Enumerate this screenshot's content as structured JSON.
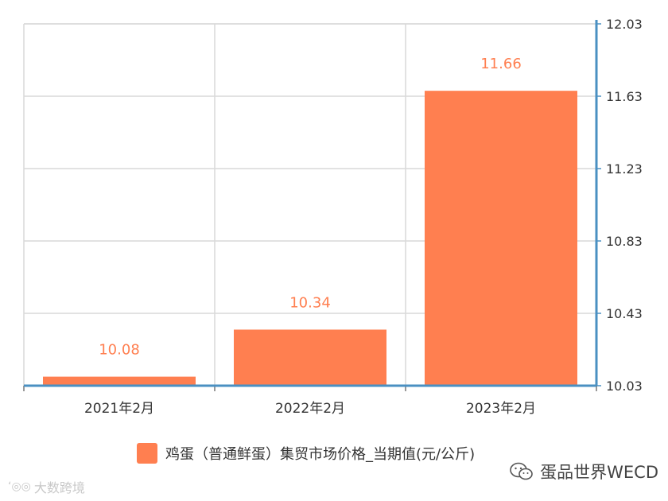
{
  "chart_data": {
    "type": "bar",
    "categories": [
      "2021年2月",
      "2022年2月",
      "2023年2月"
    ],
    "series": [
      {
        "name": "鸡蛋（普通鲜蛋）集贸市场价格_当期值(元/公斤)",
        "values": [
          10.08,
          10.34,
          11.66
        ]
      }
    ],
    "data_labels": [
      "10.08",
      "10.34",
      "11.66"
    ],
    "y_ticks": [
      "12.03",
      "11.63",
      "11.23",
      "10.83",
      "10.43",
      "10.03"
    ],
    "ylim": [
      10.03,
      12.03
    ],
    "y_axis_side": "right",
    "grid": true,
    "legend_position": "bottom",
    "colors": {
      "bar": "#ff7f50",
      "data_label": "#ff7f50",
      "grid": "#d9d9d9",
      "axis": "#4a90c2"
    }
  },
  "watermarks": {
    "left_text": "大数跨境",
    "left_icon": "logo-icon",
    "right_text": "蛋品世界WECD",
    "right_icon": "wechat-icon"
  }
}
